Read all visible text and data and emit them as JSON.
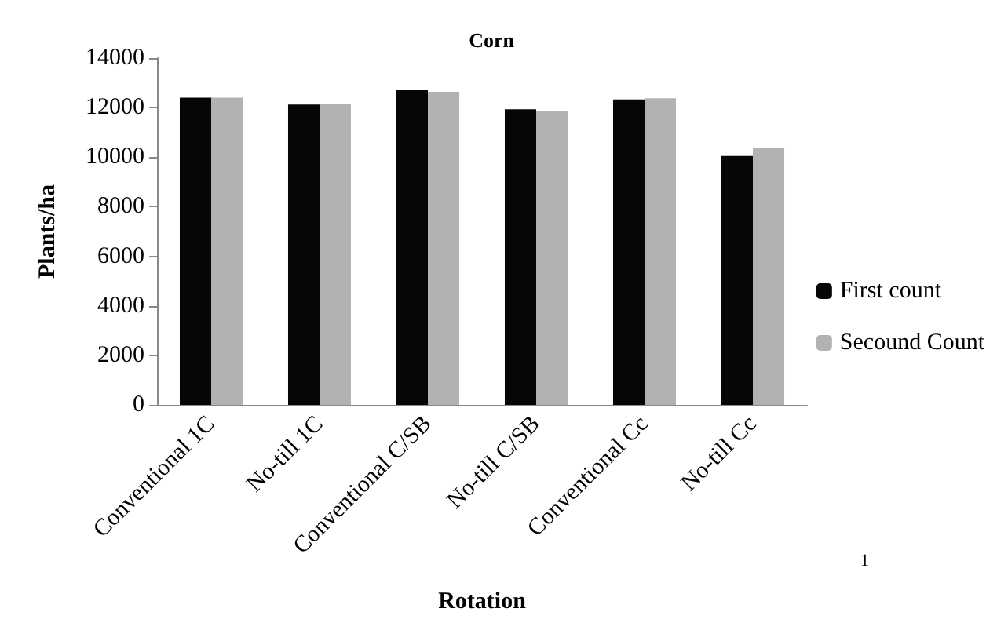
{
  "chart_data": {
    "type": "bar",
    "title": "Corn",
    "xlabel": "Rotation",
    "ylabel": "Plants/ha",
    "categories": [
      "Conventional 1C",
      "No-till 1C",
      "Conventional C/SB",
      "No-till C/SB",
      "Conventional Cc",
      "No-till Cc"
    ],
    "series": [
      {
        "name": "First count",
        "color": "#060604",
        "values": [
          12400,
          12120,
          12700,
          11930,
          12330,
          10050
        ]
      },
      {
        "name": "Secound Count",
        "color": "#b2b2b2",
        "values": [
          12400,
          12140,
          12640,
          11880,
          12380,
          10380
        ]
      }
    ],
    "ylim": [
      0,
      14000
    ],
    "yticks": [
      0,
      2000,
      4000,
      6000,
      8000,
      10000,
      12000,
      14000
    ],
    "grid": false,
    "legend": "right",
    "annotations": [
      "1"
    ]
  }
}
